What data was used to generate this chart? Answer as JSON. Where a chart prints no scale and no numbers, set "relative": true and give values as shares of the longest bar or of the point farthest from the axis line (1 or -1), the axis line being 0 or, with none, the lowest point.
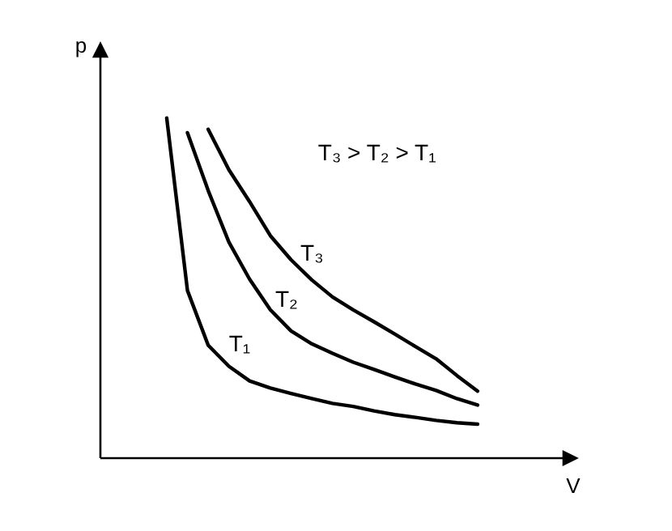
{
  "chart_data": {
    "type": "line",
    "relative": true,
    "xlabel": "V",
    "ylabel": "p",
    "annotations": [
      "T₃ > T₂ > T₁"
    ],
    "legend": false,
    "marker": "none",
    "line_style": "solid",
    "categories": [
      null,
      null,
      null,
      null,
      null,
      null,
      null,
      null,
      null,
      null,
      null,
      null,
      null,
      null,
      null,
      null
    ],
    "series": [
      {
        "name": "T₁",
        "color": "#000000",
        "values": [
          1.0,
          0.493,
          0.332,
          0.27,
          0.227,
          0.206,
          0.19,
          0.175,
          0.161,
          0.152,
          0.139,
          0.128,
          0.12,
          0.111,
          0.104,
          0.1
        ]
      },
      {
        "name": "T₂",
        "color": "#000000",
        "values": [
          null,
          0.957,
          0.787,
          0.635,
          0.526,
          0.436,
          0.374,
          0.336,
          0.308,
          0.282,
          0.261,
          0.239,
          0.218,
          0.199,
          0.175,
          0.156
        ]
      },
      {
        "name": "T₃",
        "color": "#000000",
        "values": [
          null,
          null,
          0.967,
          0.848,
          0.754,
          0.654,
          0.583,
          0.524,
          0.474,
          0.436,
          0.401,
          0.365,
          0.328,
          0.292,
          0.243,
          0.197
        ]
      }
    ]
  }
}
